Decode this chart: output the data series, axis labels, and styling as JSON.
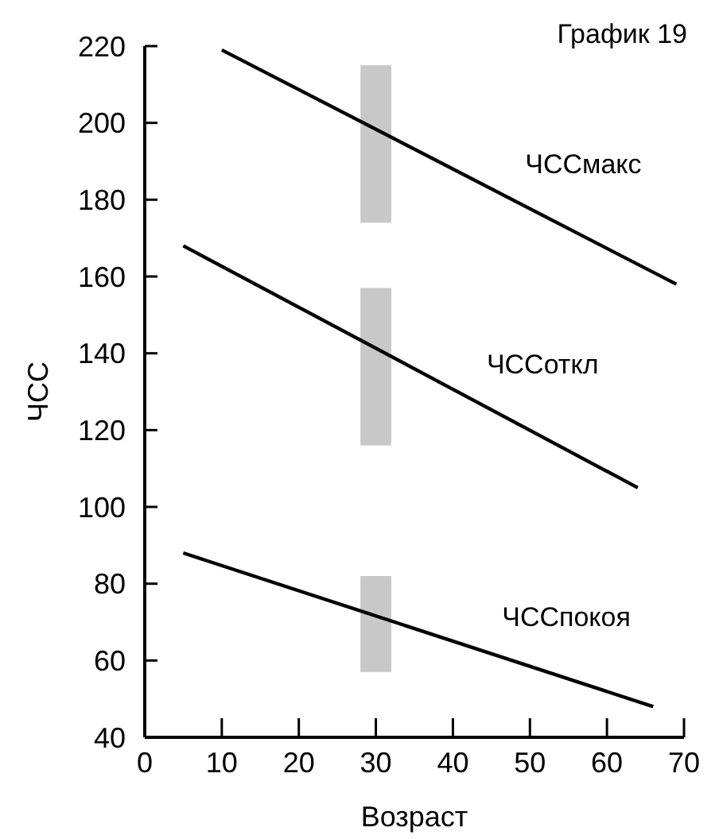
{
  "chart_data": {
    "type": "line",
    "title": "График 19",
    "xlabel": "Возраст",
    "ylabel": "ЧСС",
    "xlim": [
      0,
      70
    ],
    "xticks": [
      0,
      10,
      20,
      30,
      40,
      50,
      60,
      70
    ],
    "ylim": [
      40,
      220
    ],
    "yticks": [
      40,
      60,
      80,
      100,
      120,
      140,
      160,
      180,
      200,
      220
    ],
    "grid": false,
    "marker": "none",
    "line_style": "solid",
    "series": [
      {
        "name": "ЧССмакс",
        "color": "#000000",
        "x": [
          10,
          69
        ],
        "values": [
          219,
          158
        ]
      },
      {
        "name": "ЧССоткл",
        "color": "#000000",
        "x": [
          5,
          64
        ],
        "values": [
          168,
          105
        ]
      },
      {
        "name": "ЧССпокоя",
        "color": "#000000",
        "x": [
          5,
          66
        ],
        "values": [
          88,
          48
        ]
      },
      {
        "type": "bar",
        "color": "#c8c8c8",
        "x": [
          30
        ],
        "base": [
          174
        ],
        "values": [
          41
        ]
      },
      {
        "type": "bar",
        "color": "#c8c8c8",
        "x": [
          30
        ],
        "base": [
          116
        ],
        "values": [
          41
        ]
      },
      {
        "type": "bar",
        "color": "#c8c8c8",
        "x": [
          30
        ],
        "base": [
          57
        ],
        "values": [
          25
        ]
      }
    ]
  }
}
